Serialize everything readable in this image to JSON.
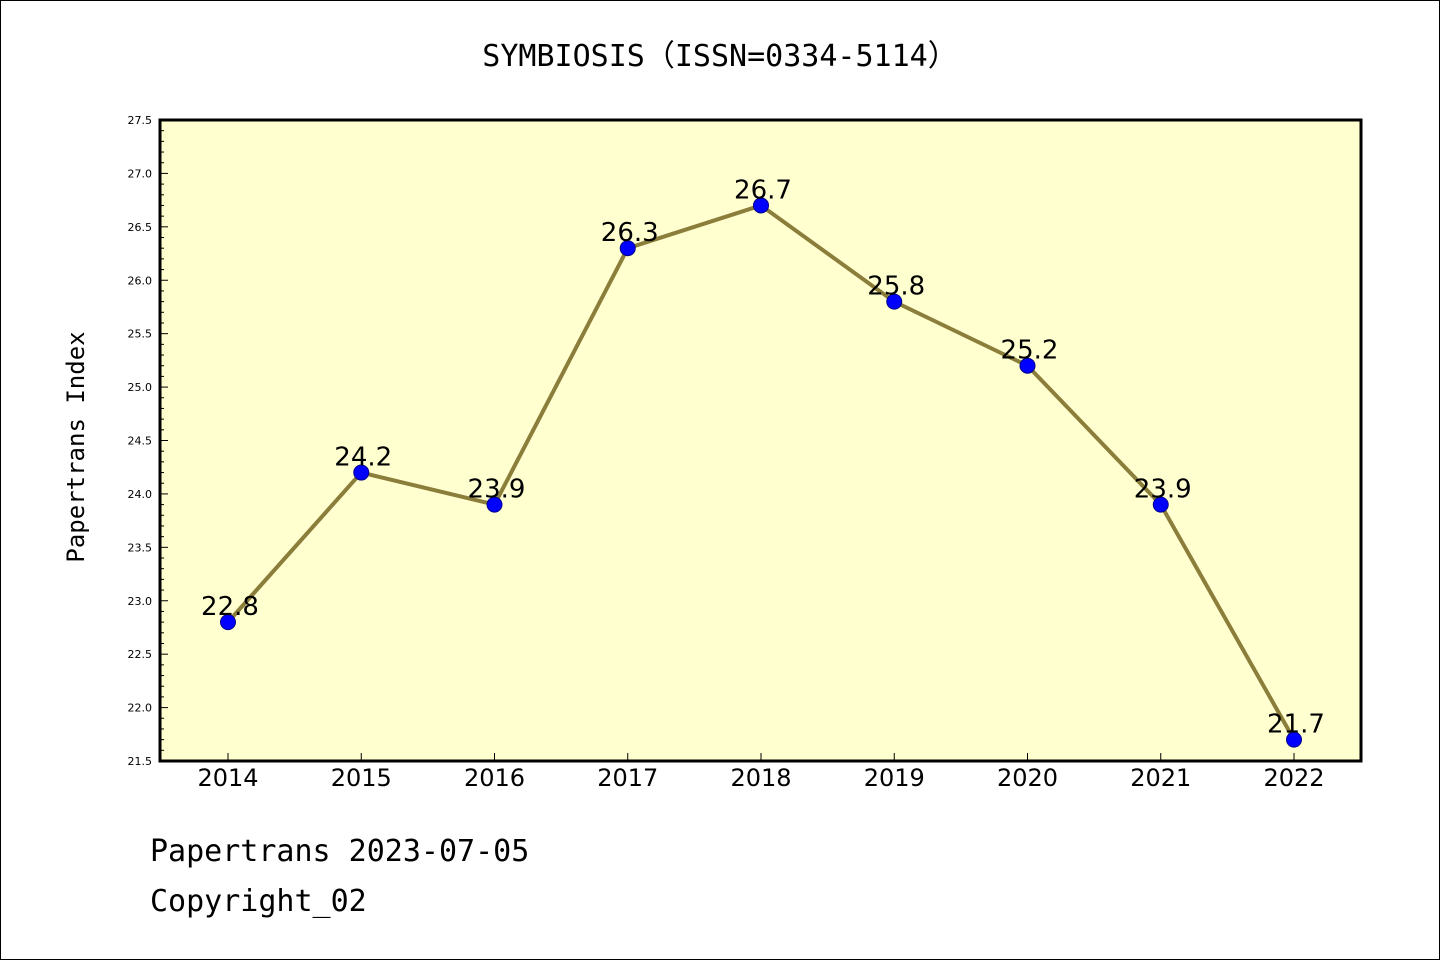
{
  "chart_data": {
    "type": "line",
    "title": "SYMBIOSIS（ISSN=0334-5114）",
    "ylabel": "Papertrans Index",
    "xlabel": "",
    "categories": [
      "2014",
      "2015",
      "2016",
      "2017",
      "2018",
      "2019",
      "2020",
      "2021",
      "2022"
    ],
    "values": [
      22.8,
      24.2,
      23.9,
      26.3,
      26.7,
      25.8,
      25.2,
      23.9,
      21.7
    ],
    "data_labels": [
      "22.8",
      "24.2",
      "23.9",
      "26.3",
      "26.7",
      "25.8",
      "25.2",
      "23.9",
      "21.7"
    ],
    "ylim": [
      21.5,
      27.5
    ],
    "yticks": [
      "21.5",
      "22.0",
      "22.5",
      "23.0",
      "23.5",
      "24.0",
      "24.5",
      "25.0",
      "25.5",
      "26.0",
      "26.5",
      "27.0",
      "27.5"
    ],
    "grid": false,
    "colors": {
      "plot_background": "#ffffd0",
      "line": "#8b7d3a",
      "marker": "#0000ff",
      "marker_edge": "#00008b"
    }
  },
  "footer": {
    "line1": "Papertrans 2023-07-05",
    "line2": "Copyright_02"
  }
}
